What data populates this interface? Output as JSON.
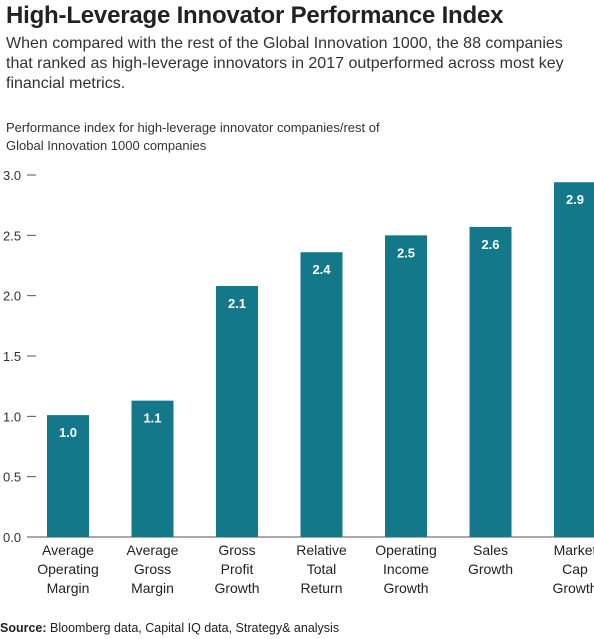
{
  "title": "High-Leverage Innovator Performance Index",
  "subtitle": "When compared with the rest of the Global Innovation 1000, the 88 companies that ranked as high-leverage innovators in 2017 outperformed across most key financial metrics.",
  "source_label": "Source:",
  "source_text": "Bloomberg data, Capital IQ data, Strategy& analysis",
  "chart_data": {
    "type": "bar",
    "ylabel": "Performance index for high-leverage innovator companies/rest of Global Innovation 1000 companies",
    "ylim": [
      0,
      3.0
    ],
    "yticks": [
      "0.0",
      "0.5",
      "1.0",
      "1.5",
      "2.0",
      "2.5",
      "3.0"
    ],
    "categories": [
      [
        "Average",
        "Operating",
        "Margin"
      ],
      [
        "Average",
        "Gross",
        "Margin"
      ],
      [
        "Gross",
        "Profit",
        "Growth"
      ],
      [
        "Relative",
        "Total",
        "Return"
      ],
      [
        "Operating",
        "Income",
        "Growth"
      ],
      [
        "Sales",
        "Growth"
      ],
      [
        "Market",
        "Cap",
        "Growth"
      ]
    ],
    "values": [
      1.01,
      1.13,
      2.08,
      2.36,
      2.5,
      2.57,
      2.94
    ],
    "value_labels": [
      "1.0",
      "1.1",
      "2.1",
      "2.4",
      "2.5",
      "2.6",
      "2.9"
    ],
    "bar_color": "#137889",
    "grid": false
  }
}
